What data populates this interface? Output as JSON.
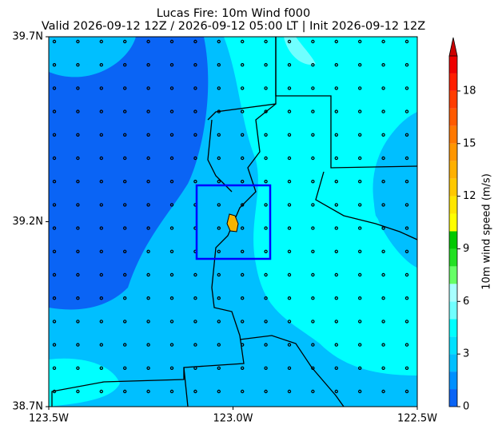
{
  "chart_data": {
    "type": "contour-map",
    "title": "Lucas Fire: 10m Wind f000",
    "subtitle": "Valid 2026-09-12 12Z / 2026-09-12 05:00 LT | Init 2026-09-12 12Z",
    "xlim": [
      -123.5,
      -122.5
    ],
    "xticks": [
      {
        "value": -123.5,
        "label": "123.5W"
      },
      {
        "value": -123.0,
        "label": "123.0W"
      },
      {
        "value": -122.5,
        "label": "122.5W"
      }
    ],
    "ylim": [
      38.7,
      39.7
    ],
    "yticks": [
      {
        "value": 38.7,
        "label": "38.7N"
      },
      {
        "value": 39.2,
        "label": "39.2N"
      },
      {
        "value": 39.7,
        "label": "39.7N"
      }
    ],
    "colorbar": {
      "label": "10m wind speed (m/s)",
      "lim": [
        0,
        20
      ],
      "ticks": [
        0,
        3,
        6,
        9,
        12,
        15,
        18
      ],
      "colors": [
        "#0a64f5",
        "#0090ff",
        "#00bfff",
        "#00e0ff",
        "#00ffff",
        "#70ffff",
        "#a8ffff",
        "#66ff66",
        "#22e022",
        "#00c800",
        "#ffff00",
        "#ffe600",
        "#ffc800",
        "#ffb000",
        "#ff9600",
        "#ff7800",
        "#ff5a00",
        "#ff3c00",
        "#ff1e00",
        "#ee0000"
      ],
      "extend_color": "#cc0000"
    }
  }
}
